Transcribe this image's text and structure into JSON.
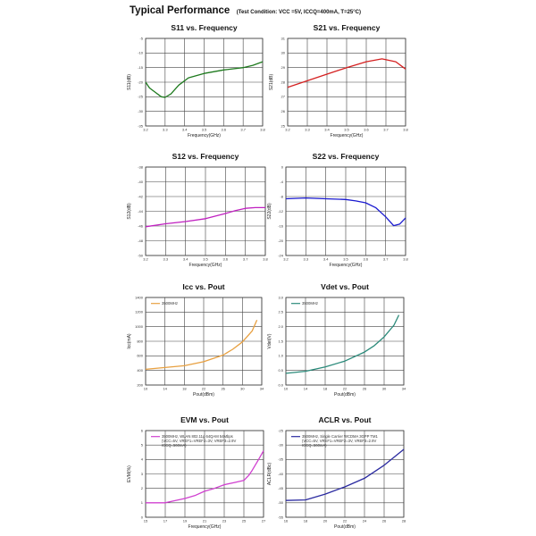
{
  "header": {
    "title": "Typical Performance",
    "condition": "(Test Condition: VCC =5V, ICCQ=400mA, T=25°C)"
  },
  "chart_data": [
    {
      "type": "line",
      "title": "S11 vs. Frequency",
      "xlabel": "Frequency(GHz)",
      "ylabel": "S11(dB)",
      "xlim": [
        3.2,
        3.8
      ],
      "ylim": [
        -35,
        -5
      ],
      "xticks": [
        "3.2",
        "3.3",
        "3.4",
        "3.5",
        "3.6",
        "3.7",
        "3.8"
      ],
      "yticks": [
        "-5",
        "-10",
        "-15",
        "-20",
        "-25",
        "-30",
        "-35"
      ],
      "grid": true,
      "series": [
        {
          "name": "S11",
          "color": "#1e7a1e",
          "x": [
            3.2,
            3.22,
            3.25,
            3.28,
            3.3,
            3.33,
            3.37,
            3.42,
            3.5,
            3.6,
            3.7,
            3.75,
            3.8
          ],
          "y": [
            -20,
            -22,
            -23.5,
            -25,
            -25.2,
            -24,
            -21,
            -18.5,
            -17,
            -15.8,
            -15,
            -14.2,
            -13
          ]
        }
      ]
    },
    {
      "type": "line",
      "title": "S21 vs. Frequency",
      "xlabel": "Frequency(GHz)",
      "ylabel": "S21(dB)",
      "xlim": [
        3.2,
        3.8
      ],
      "ylim": [
        25,
        31
      ],
      "xticks": [
        "3.2",
        "3.3",
        "3.4",
        "3.5",
        "3.6",
        "3.7",
        "3.8"
      ],
      "yticks": [
        "31",
        "30",
        "29",
        "28",
        "27",
        "26",
        "25"
      ],
      "grid": true,
      "series": [
        {
          "name": "S21",
          "color": "#d42020",
          "x": [
            3.2,
            3.3,
            3.4,
            3.5,
            3.6,
            3.68,
            3.75,
            3.8
          ],
          "y": [
            27.65,
            28.1,
            28.55,
            29.0,
            29.4,
            29.6,
            29.4,
            28.9
          ]
        }
      ]
    },
    {
      "type": "line",
      "title": "S12 vs. Frequency",
      "xlabel": "Frequency(GHz)",
      "ylabel": "S12(dB)",
      "xlim": [
        3.2,
        3.8
      ],
      "ylim": [
        -50,
        -38
      ],
      "xticks": [
        "3.2",
        "3.3",
        "3.4",
        "3.5",
        "3.6",
        "3.7",
        "3.8"
      ],
      "yticks": [
        "-38",
        "-40",
        "-42",
        "-44",
        "-46",
        "-48",
        "-50"
      ],
      "grid": true,
      "series": [
        {
          "name": "S12",
          "color": "#c020c0",
          "x": [
            3.2,
            3.3,
            3.4,
            3.5,
            3.6,
            3.65,
            3.7,
            3.75,
            3.8
          ],
          "y": [
            -46.1,
            -45.7,
            -45.4,
            -45.0,
            -44.3,
            -43.9,
            -43.6,
            -43.5,
            -43.5
          ]
        }
      ]
    },
    {
      "type": "line",
      "title": "S22 vs. Frequency",
      "xlabel": "Frequency(GHz)",
      "ylabel": "S22(dB)",
      "xlim": [
        3.2,
        3.8
      ],
      "ylim": [
        -24,
        0
      ],
      "xticks": [
        "3.2",
        "3.3",
        "3.4",
        "3.5",
        "3.6",
        "3.7",
        "3.8"
      ],
      "yticks": [
        "0",
        "-4",
        "-8",
        "-12",
        "-16",
        "-20",
        "-24"
      ],
      "grid": true,
      "series": [
        {
          "name": "S22",
          "color": "#1a1ad0",
          "x": [
            3.2,
            3.3,
            3.4,
            3.5,
            3.55,
            3.6,
            3.65,
            3.7,
            3.74,
            3.77,
            3.8
          ],
          "y": [
            -8.6,
            -8.4,
            -8.6,
            -8.8,
            -9.2,
            -9.7,
            -11,
            -13.5,
            -15.9,
            -15.5,
            -13.8
          ]
        }
      ]
    },
    {
      "type": "line",
      "title": "Icc vs. Pout",
      "xlabel": "Pout(dBm)",
      "ylabel": "Icc(mA)",
      "xlim": [
        10,
        34
      ],
      "ylim": [
        200,
        1400
      ],
      "xticks": [
        "10",
        "14",
        "18",
        "22",
        "26",
        "30",
        "34"
      ],
      "yticks": [
        "1400",
        "1200",
        "1000",
        "800",
        "600",
        "400",
        "200"
      ],
      "grid": true,
      "legend": [
        "3500MHz"
      ],
      "series": [
        {
          "name": "3500MHz",
          "color": "#e8a040",
          "x": [
            10,
            14,
            18,
            22,
            26,
            28,
            30,
            32,
            33
          ],
          "y": [
            415,
            440,
            465,
            520,
            610,
            690,
            790,
            940,
            1090
          ]
        }
      ]
    },
    {
      "type": "line",
      "title": "Vdet vs. Pout",
      "xlabel": "Pout(dBm)",
      "ylabel": "Vdet(V)",
      "xlim": [
        10,
        34
      ],
      "ylim": [
        0,
        3
      ],
      "xticks": [
        "10",
        "14",
        "18",
        "22",
        "26",
        "30",
        "34"
      ],
      "yticks": [
        "3.0",
        "2.5",
        "2.0",
        "1.5",
        "1.0",
        "0.5",
        "0.0"
      ],
      "grid": true,
      "legend": [
        "3500MHz"
      ],
      "series": [
        {
          "name": "3500MHz",
          "color": "#2a8a7a",
          "x": [
            10,
            14,
            18,
            22,
            26,
            28,
            30,
            32,
            33
          ],
          "y": [
            0.4,
            0.47,
            0.62,
            0.82,
            1.13,
            1.35,
            1.65,
            2.05,
            2.4
          ]
        }
      ]
    },
    {
      "type": "line",
      "title": "EVM vs. Pout",
      "xlabel": "Frequency(GHz)",
      "ylabel": "EVM(%)",
      "xlim": [
        15,
        27
      ],
      "ylim": [
        0,
        6
      ],
      "xticks": [
        "15",
        "17",
        "19",
        "21",
        "23",
        "25",
        "27"
      ],
      "yticks": [
        "6",
        "5",
        "4",
        "3",
        "2",
        "1",
        "0"
      ],
      "grid": true,
      "legend": [
        "3500MHz, WLAN 802.11g 64QAM 54Mbps",
        "(VCC=5V, VREF1=VREF2=3V, VREF3=2.9V",
        "ICCQ=560mA)"
      ],
      "series": [
        {
          "name": "3500MHz, WLAN 802.11g 64QAM 54Mbps",
          "color": "#d040d0",
          "x": [
            15,
            17,
            19,
            20,
            21,
            22,
            23,
            24,
            25,
            25.5,
            25.8,
            26.5,
            27
          ],
          "y": [
            1.0,
            1.0,
            1.3,
            1.5,
            1.8,
            2.0,
            2.25,
            2.4,
            2.55,
            2.9,
            3.2,
            4.0,
            4.6
          ]
        }
      ]
    },
    {
      "type": "line",
      "title": "ACLR vs. Pout",
      "xlabel": "Pout(dBm)",
      "ylabel": "ACLR(dBc)",
      "xlim": [
        16,
        28
      ],
      "ylim": [
        -55,
        -25
      ],
      "xticks": [
        "16",
        "18",
        "20",
        "22",
        "24",
        "26",
        "28"
      ],
      "yticks": [
        "-25",
        "-30",
        "-35",
        "-40",
        "-45",
        "-50",
        "-55"
      ],
      "grid": true,
      "legend": [
        "3500MHz, Single Carrier WCDMA 3GPP TM1",
        "(VCC=5V, VREF1=VREF2=3V, VREF3=2.9V",
        "ICCQ=560mA)"
      ],
      "series": [
        {
          "name": "3500MHz, Single Carrier WCDMA 3GPP TM1",
          "color": "#2a2aa0",
          "x": [
            16,
            18,
            20,
            22,
            24,
            26,
            28
          ],
          "y": [
            -49.2,
            -49,
            -47,
            -44.5,
            -41.5,
            -37,
            -31.5
          ]
        }
      ]
    }
  ]
}
